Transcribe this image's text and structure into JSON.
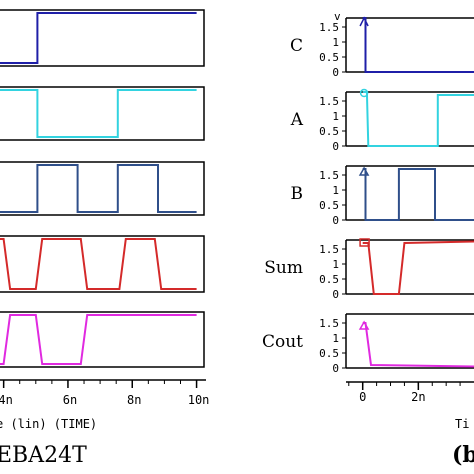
{
  "chart_data": [
    {
      "type": "line",
      "panel": "left",
      "caption": "EBA24T",
      "x_axis_label": "e (lin) (TIME)",
      "x_tick_labels": [
        "4n",
        "6n",
        "8n",
        "10n"
      ],
      "x_ticks": [
        4,
        6,
        8,
        10
      ],
      "xlim": [
        3.7,
        10.2
      ],
      "x_unit": "ns",
      "grid": false,
      "series": [
        {
          "color": "#1f1fa8",
          "x": [
            3.7,
            5.05,
            5.05,
            10.0
          ],
          "y": [
            0,
            0,
            1,
            1
          ]
        },
        {
          "color": "#33d3e0",
          "x": [
            3.7,
            5.05,
            5.05,
            7.55,
            7.55,
            10.0
          ],
          "y": [
            1,
            1,
            0,
            0,
            1,
            1
          ]
        },
        {
          "color": "#2f4f8a",
          "x": [
            3.7,
            3.8,
            3.8,
            5.05,
            5.05,
            6.3,
            6.3,
            7.55,
            7.55,
            8.8,
            8.8,
            10.0
          ],
          "y": [
            1,
            1,
            0,
            0,
            1,
            1,
            0,
            0,
            1,
            1,
            0,
            0
          ]
        },
        {
          "color": "#d42a2a",
          "x": [
            3.7,
            4.0,
            4.2,
            5.0,
            5.2,
            6.4,
            6.6,
            7.6,
            7.8,
            8.7,
            8.9,
            10.0
          ],
          "y": [
            1,
            1,
            0,
            0,
            1,
            1,
            0,
            0,
            1,
            1,
            0,
            0
          ]
        },
        {
          "color": "#e02ae0",
          "x": [
            3.7,
            4.0,
            4.2,
            5.0,
            5.2,
            6.4,
            6.6,
            10.0
          ],
          "y": [
            0,
            0,
            1,
            1,
            0,
            0,
            1,
            1
          ]
        }
      ]
    },
    {
      "type": "line",
      "panel": "right",
      "caption": "(b",
      "x_axis_label": "Ti",
      "x_tick_labels": [
        "0",
        "2n"
      ],
      "x_ticks": [
        0,
        2
      ],
      "xlim": [
        -0.6,
        4.0
      ],
      "x_unit": "ns",
      "grid": false,
      "signals": [
        {
          "name": "C",
          "unit_label": "v",
          "y_tick_labels": [
            "1.5",
            "1",
            "0.5",
            "0"
          ],
          "ylim": [
            0,
            1.8
          ],
          "color": "#1f1fa8",
          "marker": "arrow",
          "x": [
            0.0,
            0.1,
            0.1,
            4.0
          ],
          "y": [
            1.8,
            1.8,
            0,
            0
          ]
        },
        {
          "name": "A",
          "y_tick_labels": [
            "1.5",
            "1",
            "0.5",
            "0"
          ],
          "ylim": [
            0,
            1.8
          ],
          "color": "#33d3e0",
          "marker": "circle",
          "x": [
            0.0,
            0.15,
            0.2,
            2.7,
            2.7,
            4.0
          ],
          "y": [
            1.8,
            1.8,
            0,
            0,
            1.7,
            1.7
          ]
        },
        {
          "name": "B",
          "y_tick_labels": [
            "1.5",
            "1",
            "0.5",
            "0"
          ],
          "ylim": [
            0,
            1.8
          ],
          "color": "#2f4f8a",
          "marker": "triangle",
          "x": [
            0.0,
            0.1,
            0.1,
            1.3,
            1.3,
            2.6,
            2.6,
            4.0
          ],
          "y": [
            1.7,
            1.7,
            0,
            0,
            1.7,
            1.7,
            0,
            0
          ]
        },
        {
          "name": "Sum",
          "y_tick_labels": [
            "1.5",
            "1",
            "0.5",
            "0"
          ],
          "ylim": [
            0,
            1.8
          ],
          "color": "#d42a2a",
          "marker": "square",
          "x": [
            0.0,
            0.2,
            0.4,
            1.3,
            1.5,
            4.0
          ],
          "y": [
            1.7,
            1.7,
            0,
            0,
            1.7,
            1.75
          ]
        },
        {
          "name": "Cout",
          "y_tick_labels": [
            "1.5",
            "1",
            "0.5",
            "0"
          ],
          "ylim": [
            0,
            1.8
          ],
          "color": "#e02ae0",
          "marker": "triangle",
          "x": [
            0.0,
            0.1,
            0.3,
            4.0
          ],
          "y": [
            1.5,
            1.5,
            0.1,
            0.05
          ]
        }
      ]
    }
  ]
}
